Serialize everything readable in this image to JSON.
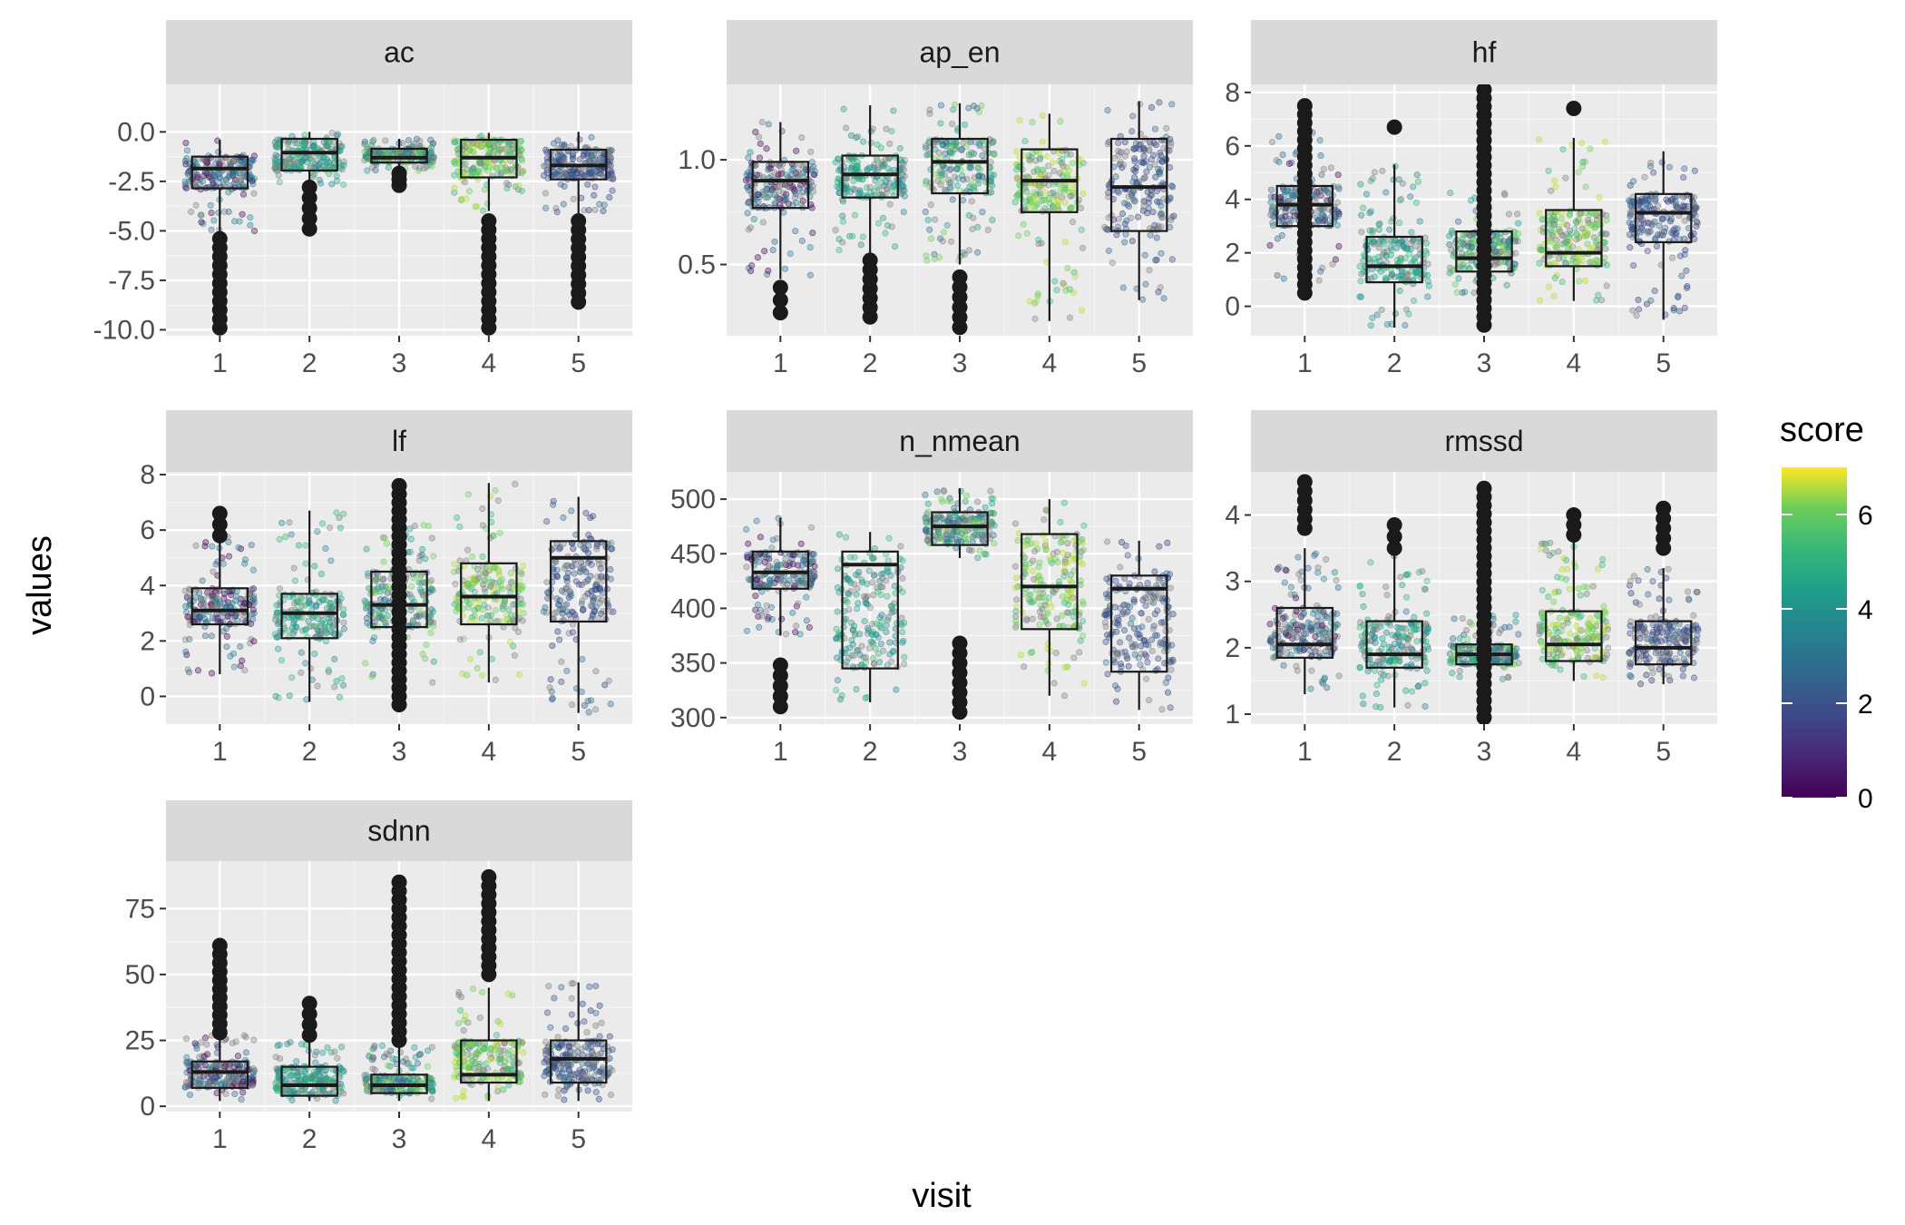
{
  "chart_data": {
    "type": "box",
    "facet_layout": "3 columns, free y scales",
    "x_axis_title": "visit",
    "y_axis_title": "values",
    "categories": [
      "1",
      "2",
      "3",
      "4",
      "5"
    ],
    "overlay": "jittered points coloured by score (viridis), semi-transparent; grey points where score is missing",
    "legend": {
      "title": "score",
      "position": "right",
      "ticks": [
        "0",
        "2",
        "4",
        "6"
      ],
      "range": [
        0,
        7
      ],
      "na_color": "#7f7f7f"
    },
    "panels": [
      {
        "name": "ac",
        "ylim": [
          -10.3,
          2.4
        ],
        "yticks": [
          0,
          -2.5,
          -5,
          -7.5,
          -10
        ],
        "ytick_labels": [
          "0.0",
          "-2.5",
          "-5.0",
          "-7.5",
          "-10.0"
        ],
        "boxes": [
          {
            "visit": "1",
            "q1": -2.85,
            "median": -1.85,
            "q3": -1.25,
            "whisker_low": -5.1,
            "whisker_high": -0.4
          },
          {
            "visit": "2",
            "q1": -1.95,
            "median": -1.05,
            "q3": -0.35,
            "whisker_low": -2.7,
            "whisker_high": 0.0
          },
          {
            "visit": "3",
            "q1": -1.55,
            "median": -1.3,
            "q3": -0.85,
            "whisker_low": -2.0,
            "whisker_high": -0.35
          },
          {
            "visit": "4",
            "q1": -2.3,
            "median": -1.3,
            "q3": -0.4,
            "whisker_low": -4.0,
            "whisker_high": -0.05
          },
          {
            "visit": "5",
            "q1": -2.4,
            "median": -1.7,
            "q3": -0.9,
            "whisker_low": -4.2,
            "whisker_high": 0.0
          }
        ],
        "outliers": [
          {
            "visit": "1",
            "low": -9.9,
            "high": -5.4
          },
          {
            "visit": "2",
            "low": -4.9,
            "high": -2.8
          },
          {
            "visit": "3",
            "low": -2.7,
            "high": -2.1
          },
          {
            "visit": "4",
            "low": -9.9,
            "high": -4.5
          },
          {
            "visit": "5",
            "low": -8.6,
            "high": -4.5
          }
        ]
      },
      {
        "name": "ap_en",
        "ylim": [
          0.16,
          1.36
        ],
        "yticks": [
          0.5,
          1.0
        ],
        "ytick_labels": [
          "0.5",
          "1.0"
        ],
        "boxes": [
          {
            "visit": "1",
            "q1": 0.77,
            "median": 0.9,
            "q3": 0.99,
            "whisker_low": 0.43,
            "whisker_high": 1.18
          },
          {
            "visit": "2",
            "q1": 0.82,
            "median": 0.93,
            "q3": 1.02,
            "whisker_low": 0.55,
            "whisker_high": 1.26
          },
          {
            "visit": "3",
            "q1": 0.84,
            "median": 0.99,
            "q3": 1.1,
            "whisker_low": 0.5,
            "whisker_high": 1.27
          },
          {
            "visit": "4",
            "q1": 0.75,
            "median": 0.9,
            "q3": 1.05,
            "whisker_low": 0.23,
            "whisker_high": 1.22
          },
          {
            "visit": "5",
            "q1": 0.66,
            "median": 0.87,
            "q3": 1.1,
            "whisker_low": 0.33,
            "whisker_high": 1.28
          }
        ],
        "outliers": [
          {
            "visit": "1",
            "low": 0.27,
            "high": 0.39
          },
          {
            "visit": "2",
            "low": 0.25,
            "high": 0.52
          },
          {
            "visit": "3",
            "low": 0.2,
            "high": 0.44
          }
        ]
      },
      {
        "name": "hf",
        "ylim": [
          -1.1,
          8.3
        ],
        "yticks": [
          0,
          2,
          4,
          6,
          8
        ],
        "ytick_labels": [
          "0",
          "2",
          "4",
          "6",
          "8"
        ],
        "boxes": [
          {
            "visit": "1",
            "q1": 3.0,
            "median": 3.8,
            "q3": 4.5,
            "whisker_low": 0.8,
            "whisker_high": 6.5
          },
          {
            "visit": "2",
            "q1": 0.9,
            "median": 1.5,
            "q3": 2.6,
            "whisker_low": -0.8,
            "whisker_high": 5.3
          },
          {
            "visit": "3",
            "q1": 1.3,
            "median": 1.8,
            "q3": 2.8,
            "whisker_low": 0.5,
            "whisker_high": 4.5
          },
          {
            "visit": "4",
            "q1": 1.5,
            "median": 2.0,
            "q3": 3.6,
            "whisker_low": 0.2,
            "whisker_high": 6.3
          },
          {
            "visit": "5",
            "q1": 2.4,
            "median": 3.5,
            "q3": 4.2,
            "whisker_low": -0.5,
            "whisker_high": 5.8
          }
        ],
        "outliers": [
          {
            "visit": "1",
            "low": 0.5,
            "high": 7.5
          },
          {
            "visit": "2",
            "low": 6.7,
            "high": 6.7
          },
          {
            "visit": "3",
            "low": -0.7,
            "high": 8.1
          },
          {
            "visit": "4",
            "low": 7.4,
            "high": 7.4
          }
        ]
      },
      {
        "name": "lf",
        "ylim": [
          -1.0,
          8.1
        ],
        "yticks": [
          0,
          2,
          4,
          6,
          8
        ],
        "ytick_labels": [
          "0",
          "2",
          "4",
          "6",
          "8"
        ],
        "boxes": [
          {
            "visit": "1",
            "q1": 2.6,
            "median": 3.1,
            "q3": 3.9,
            "whisker_low": 0.8,
            "whisker_high": 5.8
          },
          {
            "visit": "2",
            "q1": 2.1,
            "median": 3.0,
            "q3": 3.7,
            "whisker_low": -0.2,
            "whisker_high": 6.7
          },
          {
            "visit": "3",
            "q1": 2.5,
            "median": 3.3,
            "q3": 4.5,
            "whisker_low": 0.4,
            "whisker_high": 6.3
          },
          {
            "visit": "4",
            "q1": 2.6,
            "median": 3.6,
            "q3": 4.8,
            "whisker_low": 0.5,
            "whisker_high": 7.7
          },
          {
            "visit": "5",
            "q1": 2.7,
            "median": 5.0,
            "q3": 5.6,
            "whisker_low": -0.6,
            "whisker_high": 7.2
          }
        ],
        "outliers": [
          {
            "visit": "1",
            "low": 5.8,
            "high": 6.6
          },
          {
            "visit": "3",
            "low": -0.3,
            "high": 7.6
          }
        ]
      },
      {
        "name": "n_nmean",
        "ylim": [
          294,
          525
        ],
        "yticks": [
          300,
          350,
          400,
          450,
          500
        ],
        "ytick_labels": [
          "300",
          "350",
          "400",
          "450",
          "500"
        ],
        "boxes": [
          {
            "visit": "1",
            "q1": 418,
            "median": 433,
            "q3": 452,
            "whisker_low": 375,
            "whisker_high": 483
          },
          {
            "visit": "2",
            "q1": 345,
            "median": 440,
            "q3": 452,
            "whisker_low": 314,
            "whisker_high": 470
          },
          {
            "visit": "3",
            "q1": 458,
            "median": 475,
            "q3": 488,
            "whisker_low": 446,
            "whisker_high": 510
          },
          {
            "visit": "4",
            "q1": 381,
            "median": 420,
            "q3": 468,
            "whisker_low": 320,
            "whisker_high": 500
          },
          {
            "visit": "5",
            "q1": 342,
            "median": 418,
            "q3": 430,
            "whisker_low": 307,
            "whisker_high": 462
          }
        ],
        "outliers": [
          {
            "visit": "1",
            "low": 310,
            "high": 348
          },
          {
            "visit": "3",
            "low": 305,
            "high": 368
          }
        ]
      },
      {
        "name": "rmssd",
        "ylim": [
          0.85,
          4.65
        ],
        "yticks": [
          1,
          2,
          3,
          4
        ],
        "ytick_labels": [
          "1",
          "2",
          "3",
          "4"
        ],
        "boxes": [
          {
            "visit": "1",
            "q1": 1.85,
            "median": 2.05,
            "q3": 2.6,
            "whisker_low": 1.3,
            "whisker_high": 3.5
          },
          {
            "visit": "2",
            "q1": 1.7,
            "median": 1.9,
            "q3": 2.4,
            "whisker_low": 1.1,
            "whisker_high": 3.4
          },
          {
            "visit": "3",
            "q1": 1.75,
            "median": 1.9,
            "q3": 2.05,
            "whisker_low": 1.5,
            "whisker_high": 2.5
          },
          {
            "visit": "4",
            "q1": 1.8,
            "median": 2.05,
            "q3": 2.55,
            "whisker_low": 1.5,
            "whisker_high": 3.6
          },
          {
            "visit": "5",
            "q1": 1.75,
            "median": 2.0,
            "q3": 2.4,
            "whisker_low": 1.45,
            "whisker_high": 3.2
          }
        ],
        "outliers": [
          {
            "visit": "1",
            "low": 3.8,
            "high": 4.5
          },
          {
            "visit": "2",
            "low": 3.5,
            "high": 3.85
          },
          {
            "visit": "3",
            "low": 0.95,
            "high": 4.4
          },
          {
            "visit": "4",
            "low": 3.7,
            "high": 4.0
          },
          {
            "visit": "5",
            "low": 3.5,
            "high": 4.1
          }
        ]
      },
      {
        "name": "sdnn",
        "ylim": [
          -2,
          93
        ],
        "yticks": [
          0,
          25,
          50,
          75
        ],
        "ytick_labels": [
          "0",
          "25",
          "50",
          "75"
        ],
        "boxes": [
          {
            "visit": "1",
            "q1": 7,
            "median": 13,
            "q3": 17,
            "whisker_low": 2,
            "whisker_high": 27
          },
          {
            "visit": "2",
            "q1": 4,
            "median": 8,
            "q3": 15,
            "whisker_low": 2,
            "whisker_high": 25
          },
          {
            "visit": "3",
            "q1": 5,
            "median": 8,
            "q3": 12,
            "whisker_low": 2,
            "whisker_high": 23
          },
          {
            "visit": "4",
            "q1": 9,
            "median": 12,
            "q3": 25,
            "whisker_low": 2,
            "whisker_high": 45
          },
          {
            "visit": "5",
            "q1": 9,
            "median": 18,
            "q3": 25,
            "whisker_low": 2,
            "whisker_high": 47
          }
        ],
        "outliers": [
          {
            "visit": "1",
            "low": 28,
            "high": 61
          },
          {
            "visit": "2",
            "low": 27,
            "high": 39
          },
          {
            "visit": "3",
            "low": 25,
            "high": 85
          },
          {
            "visit": "4",
            "low": 50,
            "high": 87
          }
        ]
      }
    ]
  },
  "colors": {
    "panel_background": "#ebebeb",
    "strip_background": "#d9d9d9",
    "grid_major": "#ffffff",
    "grid_minor": "#f5f5f5",
    "box_outline": "#1a1a1a",
    "outlier": "#1a1a1a"
  }
}
